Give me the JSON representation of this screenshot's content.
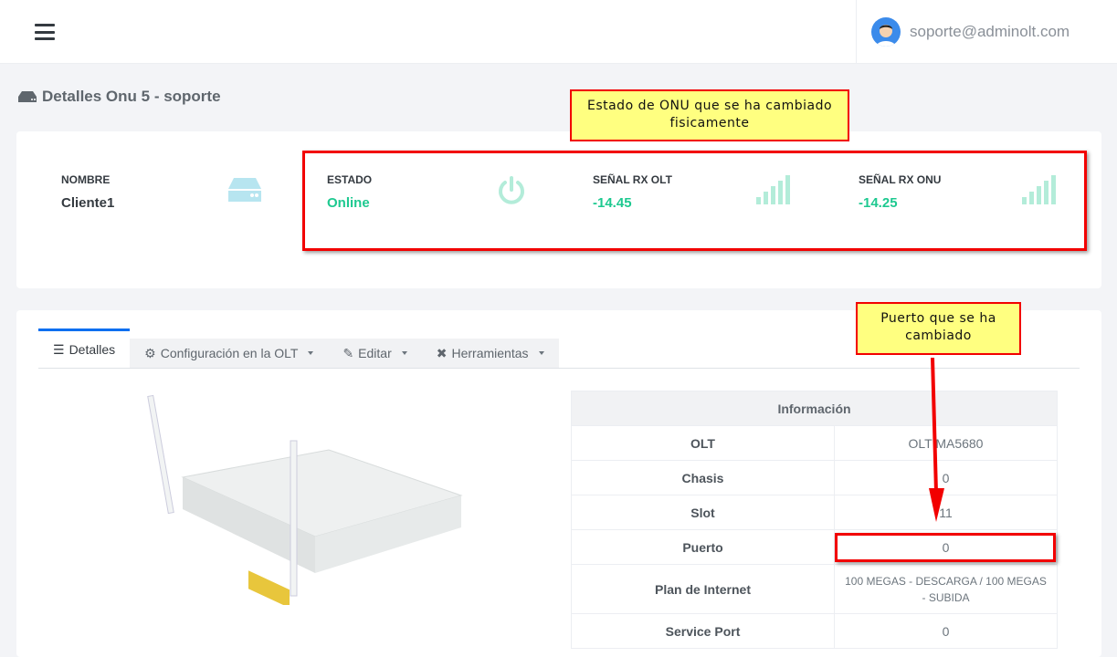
{
  "header": {
    "user_email": "soporte@adminolt.com"
  },
  "page": {
    "title": "Detalles Onu 5 - soporte"
  },
  "stats": [
    {
      "label": "NOMBRE",
      "value": "Cliente1",
      "icon": "hdd-icon"
    },
    {
      "label": "ESTADO",
      "value": "Online",
      "icon": "power-icon"
    },
    {
      "label": "SEÑAL RX OLT",
      "value": "-14.45",
      "icon": "signal-icon"
    },
    {
      "label": "SEÑAL RX ONU",
      "value": "-14.25",
      "icon": "signal-icon"
    }
  ],
  "annotations": {
    "estado_note": "Estado de ONU que se ha cambiado fisicamente",
    "puerto_note": "Puerto que se ha cambiado"
  },
  "tabs": [
    {
      "label": "Detalles",
      "icon": "list-icon"
    },
    {
      "label": "Configuración en la OLT",
      "icon": "gear-icon"
    },
    {
      "label": "Editar",
      "icon": "edit-icon"
    },
    {
      "label": "Herramientas",
      "icon": "tools-icon"
    }
  ],
  "info": {
    "title": "Información",
    "rows": [
      {
        "key": "OLT",
        "value": "OLT MA5680"
      },
      {
        "key": "Chasis",
        "value": "0"
      },
      {
        "key": "Slot",
        "value": "11"
      },
      {
        "key": "Puerto",
        "value": "0"
      },
      {
        "key": "Plan de Internet",
        "value": "100 MEGAS - DESCARGA / 100 MEGAS - SUBIDA"
      },
      {
        "key": "Service Port",
        "value": "0"
      }
    ]
  },
  "colors": {
    "accent": "#0a6ff0",
    "online": "#1ec990",
    "annotation": "#f20000",
    "note_bg": "#ffff80"
  }
}
